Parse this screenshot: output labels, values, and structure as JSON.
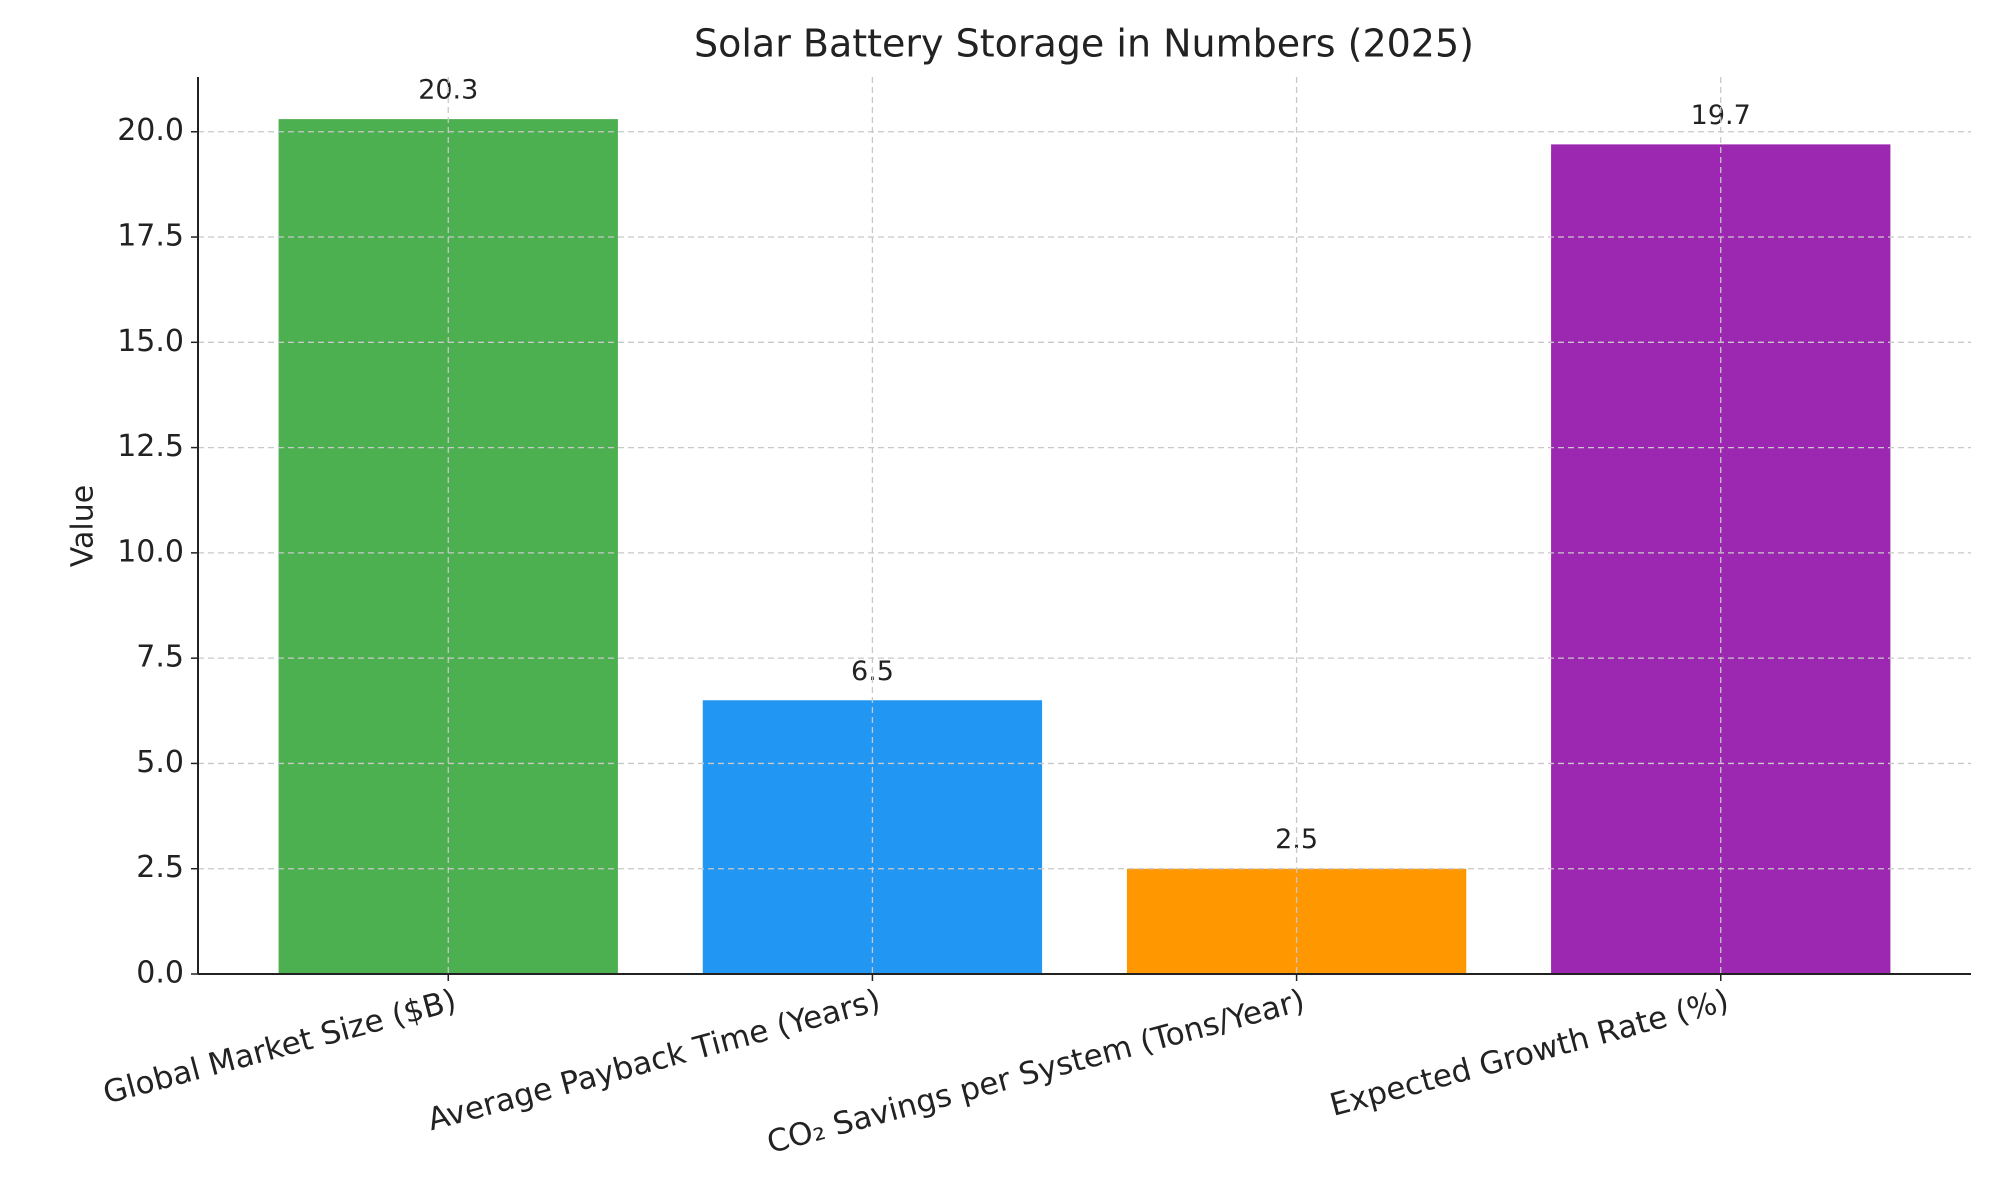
{
  "chart_data": {
    "type": "bar",
    "title": "Solar Battery Storage in Numbers (2025)",
    "y_label": "Value",
    "categories": [
      "Global Market Size ($B)",
      "Average Payback Time (Years)",
      "CO₂ Savings per System (Tons/Year)",
      "Expected Growth Rate (%)"
    ],
    "values": [
      20.3,
      6.5,
      2.5,
      19.7
    ],
    "colors": [
      "#4caf50",
      "#2196f3",
      "#ff9800",
      "#9c27b0"
    ],
    "ylim": [
      0,
      21.3
    ],
    "yticks": [
      {
        "value": 0,
        "label": "0.0"
      },
      {
        "value": 2.5,
        "label": "2.5"
      },
      {
        "value": 5,
        "label": "5.0"
      },
      {
        "value": 7.5,
        "label": "7.5"
      },
      {
        "value": 10,
        "label": "10.0"
      },
      {
        "value": 12.5,
        "label": "12.5"
      },
      {
        "value": 15,
        "label": "15.0"
      },
      {
        "value": 17.5,
        "label": "17.5"
      },
      {
        "value": 20,
        "label": "20.0"
      }
    ],
    "grid": true
  }
}
